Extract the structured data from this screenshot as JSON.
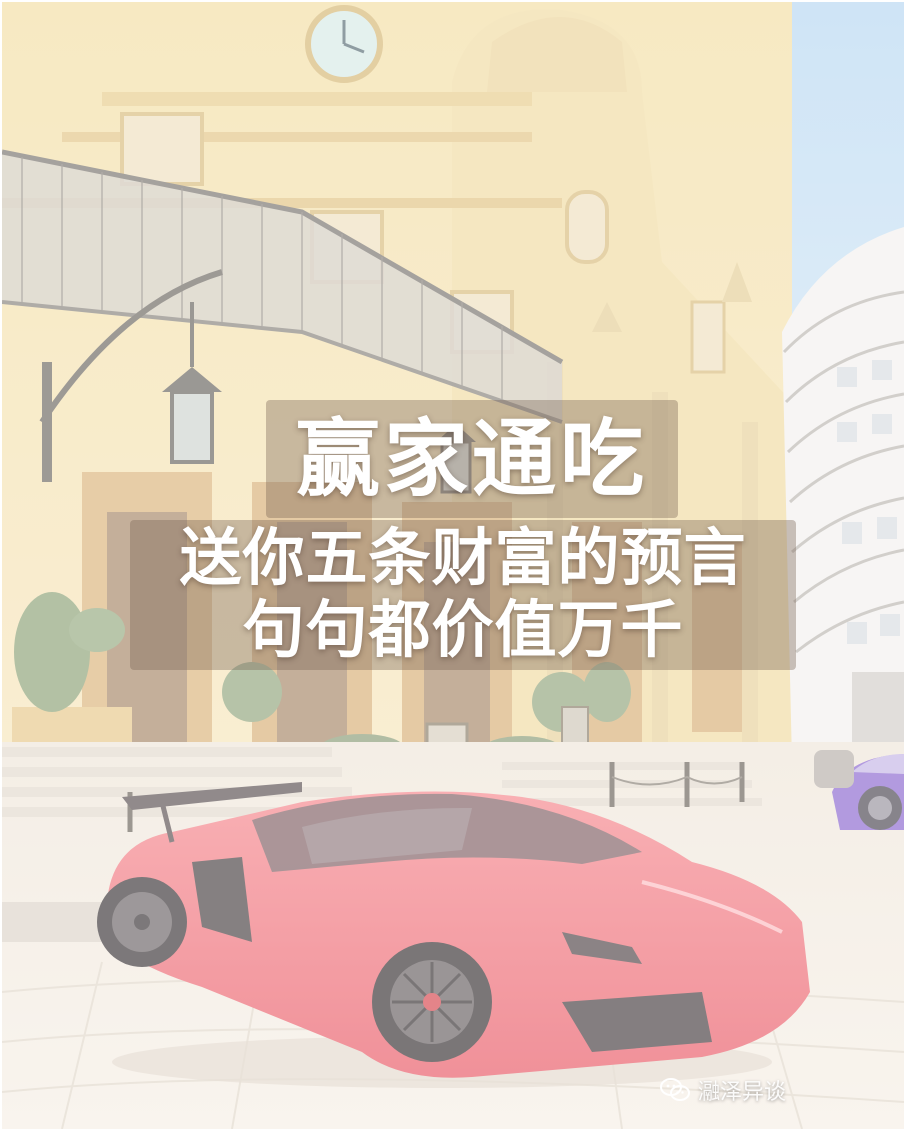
{
  "headline": "赢家通吃",
  "subtitle_lines": [
    "送你五条财富的预言",
    "句句都价值万千"
  ],
  "watermark": {
    "text": "瀜泽异谈",
    "icon": "wechat-icon"
  },
  "colors": {
    "text": "#ffffff",
    "sky": "#c9e0f2",
    "building": "#f2dfae",
    "car": "#f0646e",
    "car_purple": "#8e6ad0",
    "pavement": "#f2ebe0"
  }
}
